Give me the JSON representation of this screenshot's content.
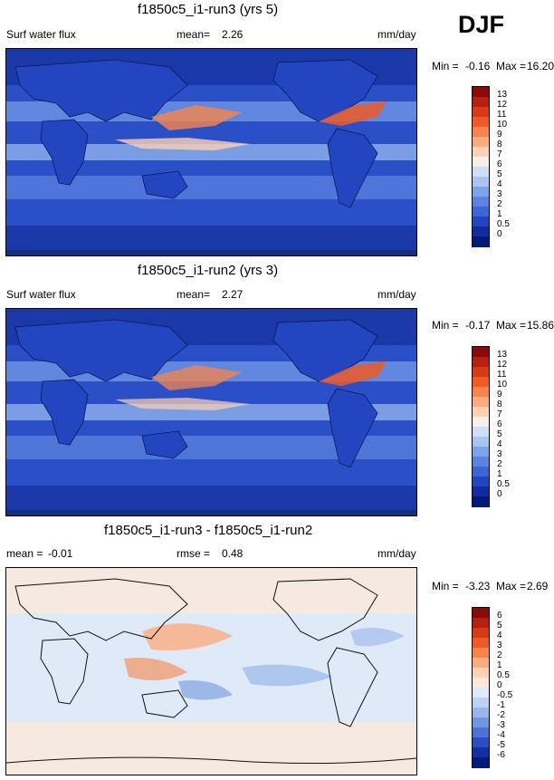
{
  "season": "DJF",
  "units": "mm/day",
  "panels": [
    {
      "title": "f1850c5_i1-run3 (yrs 5)",
      "left_label": "Surf water flux",
      "stat_label": "mean=",
      "stat_value": "2.26",
      "min_label": "Min =",
      "min_value": "-0.16",
      "max_label": "Max =",
      "max_value": "16.20",
      "colorbar_ticks": [
        "13",
        "12",
        "11",
        "10",
        "9",
        "8",
        "7",
        "6",
        "5",
        "4",
        "3",
        "2",
        "1",
        "0.5",
        "0"
      ],
      "colorbar_colors": [
        "#8a0a0a",
        "#b5200f",
        "#d83a16",
        "#ee5b26",
        "#f7844a",
        "#fbac7e",
        "#fdd1b4",
        "#f5f0ea",
        "#cfe0f6",
        "#a8c4f0",
        "#7fa3e8",
        "#5a84e0",
        "#3b66d5",
        "#2346c0",
        "#102c9e",
        "#021a78"
      ]
    },
    {
      "title": "f1850c5_i1-run2 (yrs 3)",
      "left_label": "Surf water flux",
      "stat_label": "mean=",
      "stat_value": "2.27",
      "min_label": "Min =",
      "min_value": "-0.17",
      "max_label": "Max =",
      "max_value": "15.86",
      "colorbar_ticks": [
        "13",
        "12",
        "11",
        "10",
        "9",
        "8",
        "7",
        "6",
        "5",
        "4",
        "3",
        "2",
        "1",
        "0.5",
        "0"
      ],
      "colorbar_colors": [
        "#8a0a0a",
        "#b5200f",
        "#d83a16",
        "#ee5b26",
        "#f7844a",
        "#fbac7e",
        "#fdd1b4",
        "#f5f0ea",
        "#cfe0f6",
        "#a8c4f0",
        "#7fa3e8",
        "#5a84e0",
        "#3b66d5",
        "#2346c0",
        "#102c9e",
        "#021a78"
      ]
    },
    {
      "title": "f1850c5_i1-run3 - f1850c5_i1-run2",
      "mean_label": "mean =",
      "mean_value": "-0.01",
      "stat_label": "rmse =",
      "stat_value": "0.48",
      "min_label": "Min =",
      "min_value": "-3.23",
      "max_label": "Max =",
      "max_value": "2.69",
      "colorbar_ticks": [
        "6",
        "5",
        "4",
        "3",
        "2",
        "1",
        "0.5",
        "0",
        "-0.5",
        "-1",
        "-2",
        "-3",
        "-4",
        "-5",
        "-6"
      ],
      "colorbar_colors": [
        "#8a0a0a",
        "#b5200f",
        "#d83a16",
        "#ee5b26",
        "#f7844a",
        "#fbac7e",
        "#fdd1b4",
        "#fbe8da",
        "#deeaf8",
        "#bcd2f2",
        "#98b6ea",
        "#7096e0",
        "#4b73d3",
        "#2b4fc0",
        "#1330a0",
        "#031c7c"
      ]
    }
  ]
}
